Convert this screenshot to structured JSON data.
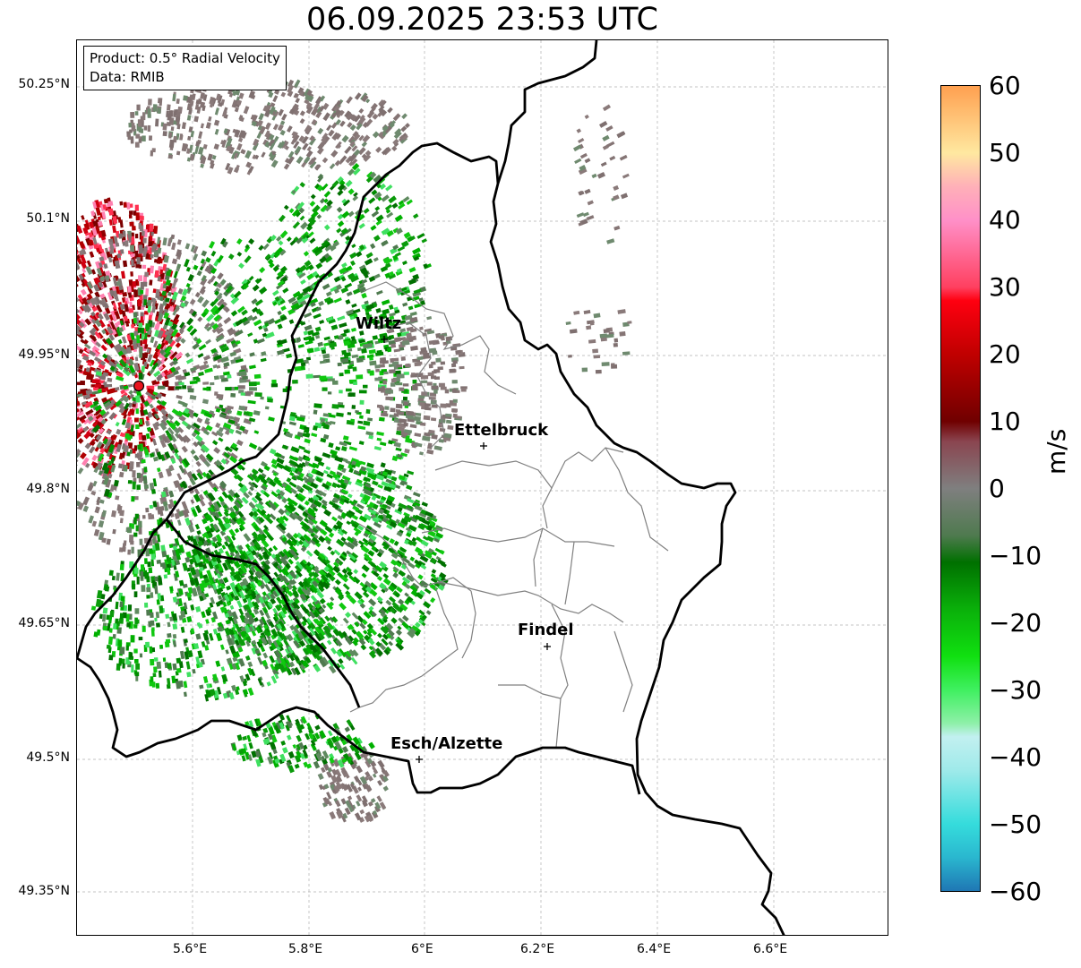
{
  "title": "06.09.2025 23:53 UTC",
  "product_box": {
    "line1": "Product: 0.5° Radial Velocity",
    "line2": "Data: RMIB"
  },
  "axes": {
    "lat_ticks": [
      "50.25°N",
      "50.1°N",
      "49.95°N",
      "49.8°N",
      "49.65°N",
      "49.5°N",
      "49.35°N"
    ],
    "lon_ticks": [
      "5.6°E",
      "5.8°E",
      "6°E",
      "6.2°E",
      "6.4°E",
      "6.6°E"
    ]
  },
  "cities": [
    {
      "name": "Wiltz"
    },
    {
      "name": "Ettelbruck"
    },
    {
      "name": "Findel"
    },
    {
      "name": "Esch/Alzette"
    }
  ],
  "colorbar": {
    "unit": "m/s",
    "ticks": [
      "60",
      "50",
      "40",
      "30",
      "20",
      "10",
      "0",
      "−10",
      "−20",
      "−30",
      "−40",
      "−50",
      "−60"
    ],
    "range": [
      -60,
      60
    ],
    "stops": [
      {
        "v": -60,
        "color": "#1f77b4"
      },
      {
        "v": -55,
        "color": "#2ab7cf"
      },
      {
        "v": -50,
        "color": "#35dcdc"
      },
      {
        "v": -42,
        "color": "#9feaea"
      },
      {
        "v": -37,
        "color": "#c2f0f0"
      },
      {
        "v": -35,
        "color": "#8ef0a8"
      },
      {
        "v": -30,
        "color": "#3ff060"
      },
      {
        "v": -25,
        "color": "#10e010"
      },
      {
        "v": -18,
        "color": "#0ab00a"
      },
      {
        "v": -11,
        "color": "#007000"
      },
      {
        "v": -7,
        "color": "#4f7a4f"
      },
      {
        "v": 0,
        "color": "#7f7f7f"
      },
      {
        "v": 7,
        "color": "#8a4550"
      },
      {
        "v": 10,
        "color": "#700000"
      },
      {
        "v": 20,
        "color": "#c00000"
      },
      {
        "v": 28,
        "color": "#ff0010"
      },
      {
        "v": 30,
        "color": "#ff4060"
      },
      {
        "v": 40,
        "color": "#ff90c8"
      },
      {
        "v": 45,
        "color": "#ffb0b8"
      },
      {
        "v": 50,
        "color": "#ffe8a0"
      },
      {
        "v": 60,
        "color": "#ffa050"
      }
    ]
  },
  "radar_site_color": "#e8141e"
}
